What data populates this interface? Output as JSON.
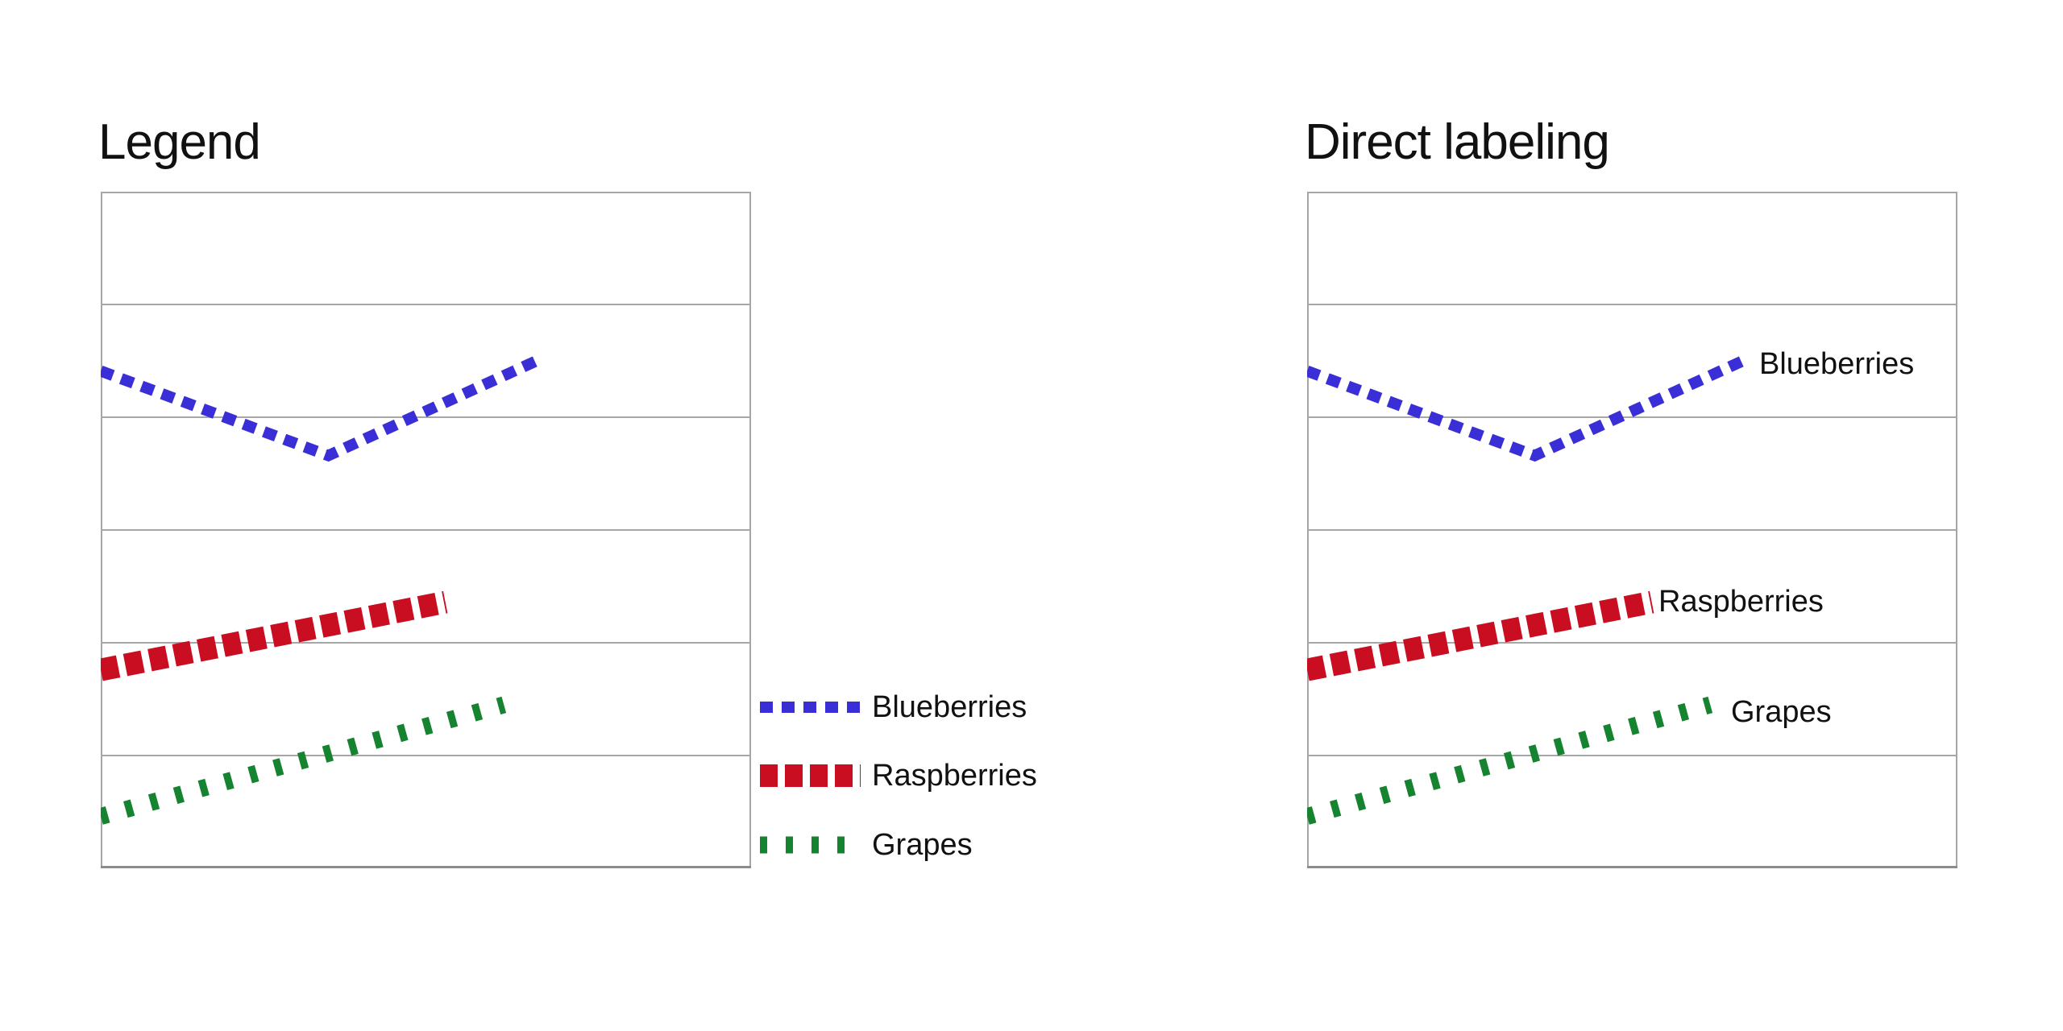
{
  "background": "#ffffff",
  "text_color": "#111111",
  "grid_color": "#a6a6a6",
  "axis_bottom_color": "#8c8c8c",
  "chart_data": [
    {
      "type": "line",
      "title": "Legend",
      "labeling_mode": "legend",
      "gridlines": {
        "rows": 6,
        "horizontal": true,
        "vertical": false
      },
      "axes": {
        "x_ticks": [],
        "y_ticks": [],
        "note": "No numeric scale or tick labels are shown. Series y-values below are expressed in gridline-row units (0 = bottom border, 6 = top border); x-values are fractions of the plot width measured from the left border."
      },
      "series": [
        {
          "name": "Blueberries",
          "color": "#3a2fd6",
          "style": "dash-medium",
          "points": [
            [
              0,
              4.41
            ],
            [
              0.35,
              3.66
            ],
            [
              0.67,
              4.5
            ]
          ]
        },
        {
          "name": "Raspberries",
          "color": "#c90e22",
          "style": "dash-heavy",
          "points": [
            [
              0,
              1.76
            ],
            [
              0.53,
              2.36
            ]
          ]
        },
        {
          "name": "Grapes",
          "color": "#15832f",
          "style": "dash-tick",
          "points": [
            [
              0,
              0.46
            ],
            [
              0.62,
              1.45
            ]
          ]
        }
      ],
      "legend": {
        "position": "outside-right-bottom",
        "entries": [
          "Blueberries",
          "Raspberries",
          "Grapes"
        ]
      }
    },
    {
      "type": "line",
      "title": "Direct labeling",
      "labeling_mode": "direct",
      "gridlines": {
        "rows": 6,
        "horizontal": true,
        "vertical": false
      },
      "axes": {
        "x_ticks": [],
        "y_ticks": [],
        "note": "Identical data to the left chart; series are labeled directly at the line ends instead of in a legend."
      },
      "series": [
        {
          "name": "Blueberries",
          "color": "#3a2fd6",
          "style": "dash-medium",
          "points": [
            [
              0,
              4.41
            ],
            [
              0.35,
              3.66
            ],
            [
              0.67,
              4.5
            ]
          ]
        },
        {
          "name": "Raspberries",
          "color": "#c90e22",
          "style": "dash-heavy",
          "points": [
            [
              0,
              1.76
            ],
            [
              0.53,
              2.36
            ]
          ]
        },
        {
          "name": "Grapes",
          "color": "#15832f",
          "style": "dash-tick",
          "points": [
            [
              0,
              0.46
            ],
            [
              0.62,
              1.45
            ]
          ]
        }
      ],
      "direct_labels": [
        "Blueberries",
        "Raspberries",
        "Grapes"
      ]
    }
  ]
}
